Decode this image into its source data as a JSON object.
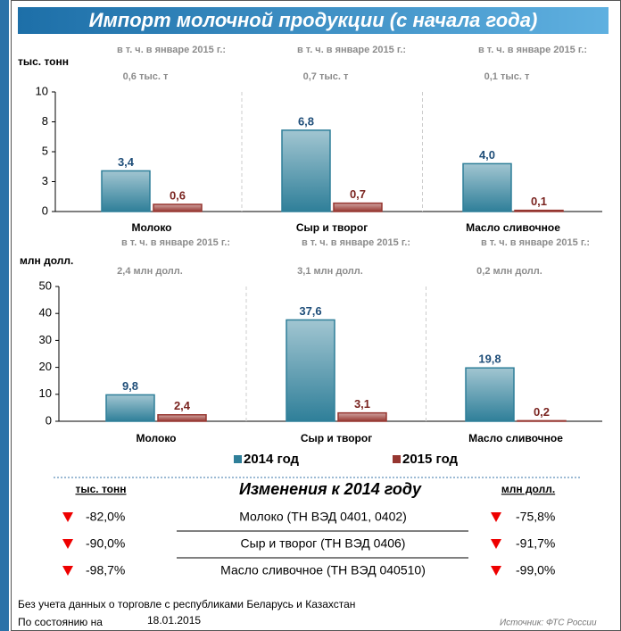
{
  "title": "Импорт молочной продукции (с начала года)",
  "chart_data": [
    {
      "type": "bar",
      "ylabel": "тыс. тонн",
      "categories": [
        "Молоко",
        "Сыр и творог",
        "Масло сливочное"
      ],
      "annotations": [
        {
          "text": "в т. ч. в январе 2015 г.:",
          "value": "0,6 тыс. т"
        },
        {
          "text": "в т. ч. в январе 2015 г.:",
          "value": "0,7 тыс. т"
        },
        {
          "text": "в т. ч. в январе 2015 г.:",
          "value": "0,1 тыс. т"
        }
      ],
      "series": [
        {
          "name": "2014 год",
          "color": "#2f7f99",
          "values": [
            3.4,
            6.8,
            4.0
          ],
          "value_labels": [
            "3,4",
            "6,8",
            "4,0"
          ]
        },
        {
          "name": "2015 год",
          "color": "#963630",
          "values": [
            0.6,
            0.7,
            0.1
          ],
          "value_labels": [
            "0,6",
            "0,7",
            "0,1"
          ]
        }
      ],
      "ylim": [
        0,
        10
      ],
      "yticks": [
        0,
        {
          "value": 2.5,
          "label": "3"
        },
        5,
        {
          "value": 7.5,
          "label": "8"
        },
        10
      ]
    },
    {
      "type": "bar",
      "ylabel": "млн долл.",
      "categories": [
        "Молоко",
        "Сыр и творог",
        "Масло сливочное"
      ],
      "annotations": [
        {
          "text": "в т. ч. в январе 2015 г.:",
          "value": "2,4 млн долл."
        },
        {
          "text": "в т. ч. в январе 2015 г.:",
          "value": "3,1 млн долл."
        },
        {
          "text": "в т. ч. в январе 2015 г.:",
          "value": "0,2 млн долл."
        }
      ],
      "series": [
        {
          "name": "2014 год",
          "color": "#2f7f99",
          "values": [
            9.8,
            37.6,
            19.8
          ],
          "value_labels": [
            "9,8",
            "37,6",
            "19,8"
          ]
        },
        {
          "name": "2015 год",
          "color": "#963630",
          "values": [
            2.4,
            3.1,
            0.2
          ],
          "value_labels": [
            "2,4",
            "3,1",
            "0,2"
          ]
        }
      ],
      "ylim": [
        0,
        50
      ],
      "yticks": [
        0,
        10,
        20,
        30,
        40,
        50
      ],
      "legend": "bottom"
    }
  ],
  "table": {
    "header": [
      "тыс. тонн",
      "Изменения к 2014 году",
      "млн долл."
    ],
    "rows": [
      [
        "-82,0%",
        "Молоко (ТН ВЭД 0401, 0402)",
        "-75,8%"
      ],
      [
        "-90,0%",
        "Сыр и творог (ТН ВЭД 0406)",
        "-91,7%"
      ],
      [
        "-98,7%",
        "Масло сливочное (ТН ВЭД 040510)",
        "-99,0%"
      ]
    ]
  },
  "footer": {
    "note": "Без учета данных о торговле с республиками Беларусь и Казахстан",
    "date_label": "По состоянию на",
    "date": "18.01.2015",
    "source": "Источник: ФТС России"
  }
}
